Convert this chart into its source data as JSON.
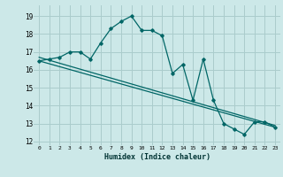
{
  "xlabel": "Humidex (Indice chaleur)",
  "background_color": "#cce8e8",
  "grid_color": "#aacccc",
  "line_color": "#006666",
  "xlim": [
    -0.5,
    23.5
  ],
  "ylim": [
    11.8,
    19.6
  ],
  "yticks": [
    12,
    13,
    14,
    15,
    16,
    17,
    18,
    19
  ],
  "xticks": [
    0,
    1,
    2,
    3,
    4,
    5,
    6,
    7,
    8,
    9,
    10,
    11,
    12,
    13,
    14,
    15,
    16,
    17,
    18,
    19,
    20,
    21,
    22,
    23
  ],
  "series1_x": [
    0,
    1,
    2,
    3,
    4,
    5,
    6,
    7,
    8,
    9,
    10,
    11,
    12,
    13,
    14,
    15,
    16,
    17,
    18,
    19,
    20,
    21,
    22,
    23
  ],
  "series1_y": [
    16.5,
    16.6,
    16.7,
    17.0,
    17.0,
    16.6,
    17.5,
    18.3,
    18.7,
    19.0,
    18.2,
    18.2,
    17.9,
    15.8,
    16.3,
    14.3,
    16.6,
    14.3,
    13.0,
    12.7,
    12.4,
    13.1,
    13.1,
    12.8
  ],
  "series2_x": [
    0,
    23
  ],
  "series2_y": [
    16.5,
    12.8
  ],
  "series3_x": [
    0,
    23
  ],
  "series3_y": [
    16.7,
    12.9
  ]
}
